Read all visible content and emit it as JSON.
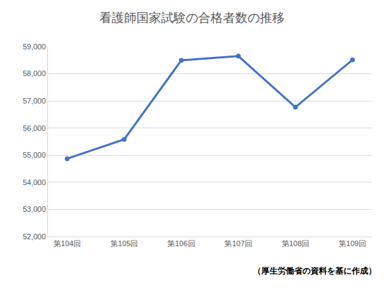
{
  "chart_data": {
    "type": "line",
    "title": "看護師国家試験の合格者数の推移",
    "categories": [
      "第104回",
      "第105回",
      "第106回",
      "第107回",
      "第108回",
      "第109回"
    ],
    "values": [
      54871,
      55585,
      58495,
      58650,
      56767,
      58513
    ],
    "color": "#4472c4",
    "marker": "circle",
    "line_style": "solid",
    "ylim": [
      52000,
      59000
    ],
    "yticks": [
      {
        "value": 52000,
        "label": "52,000"
      },
      {
        "value": 53000,
        "label": "53,000"
      },
      {
        "value": 54000,
        "label": "54,000"
      },
      {
        "value": 55000,
        "label": "55,000"
      },
      {
        "value": 56000,
        "label": "56,000"
      },
      {
        "value": 57000,
        "label": "57,000"
      },
      {
        "value": 58000,
        "label": "58,000"
      },
      {
        "value": 59000,
        "label": "59,000"
      }
    ],
    "grid": true,
    "annotations": [
      "（厚生労働省の資料を基に作成）"
    ]
  }
}
